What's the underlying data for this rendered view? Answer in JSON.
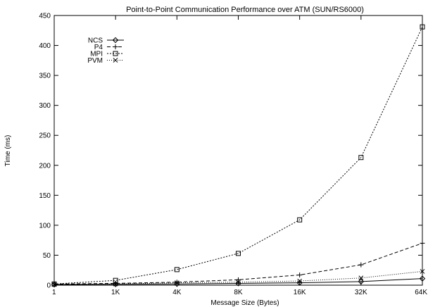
{
  "chart_data": {
    "type": "line",
    "title": "Point-to-Point Communication Performance over ATM (SUN/RS6000)",
    "xlabel": "Message Size (Bytes)",
    "ylabel": "Time (ms)",
    "categories": [
      "1",
      "1K",
      "4K",
      "8K",
      "16K",
      "32K",
      "64K"
    ],
    "ylim": [
      0,
      450
    ],
    "yticks": [
      0,
      50,
      100,
      150,
      200,
      250,
      300,
      350,
      400,
      450
    ],
    "grid": false,
    "legend_position": "top-left",
    "series": [
      {
        "name": "NCS",
        "marker": "diamond",
        "dash": "solid",
        "values": [
          1,
          1.5,
          2,
          3,
          4,
          6,
          11
        ]
      },
      {
        "name": "P4",
        "marker": "plus",
        "dash": "dashed",
        "values": [
          2,
          3,
          5,
          9,
          17,
          34,
          70
        ]
      },
      {
        "name": "MPI",
        "marker": "square",
        "dash": "dotted",
        "values": [
          2,
          8,
          26,
          53,
          109,
          213,
          431
        ]
      },
      {
        "name": "PVM",
        "marker": "cross",
        "dash": "dotted2",
        "values": [
          1,
          2,
          4,
          5,
          7,
          12,
          23
        ]
      }
    ]
  }
}
